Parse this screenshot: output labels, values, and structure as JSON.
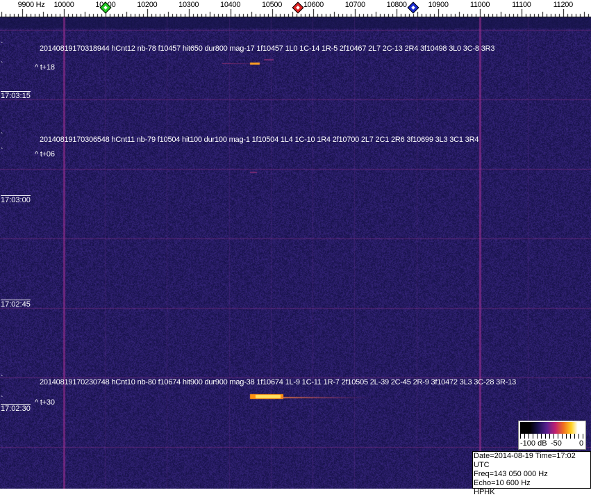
{
  "axis": {
    "unit_label": "9900 Hz",
    "ticks": [
      "10000",
      "10100",
      "10200",
      "10300",
      "10400",
      "10500",
      "10600",
      "10700",
      "10800",
      "10900",
      "11000",
      "11100",
      "11200"
    ],
    "markers": [
      {
        "name": "green-marker",
        "freq": 10100,
        "color": "#22cc22"
      },
      {
        "name": "red-marker",
        "freq": 10562,
        "color": "#dd2222"
      },
      {
        "name": "blue-marker",
        "freq": 10840,
        "color": "#1a2ad0"
      }
    ]
  },
  "colors": {
    "background": "#1c1a60",
    "line": "#8a2a8a",
    "signal": "#ffb020"
  },
  "detections": [
    {
      "info": "20140819170318944 hCnt12 nb-78 f10457 hit650 dur800 mag-17 1f10457 1L0 1C-14 1R-5 2f10467 2L7 2C-13 2R4 3f10498 3L0 3C-8 3R3",
      "offset": "^ t+18"
    },
    {
      "info": "20140819170306548 hCnt11 nb-79 f10504 hit100 dur100 mag-1 1f10504 1L4 1C-10 1R4 2f10700 2L7 2C1 2R6 3f10699 3L3 3C1 3R4",
      "offset": "^ t+06"
    },
    {
      "info": "20140819170230748 hCnt10 nb-80 f10674 hit900 dur900 mag-38 1f10674 1L-9 1C-11 1R-7 2f10505 2L-39 2C-45 2R-9 3f10472 3L3 3C-28 3R-13",
      "offset": "^ t+30"
    }
  ],
  "times": [
    "17:03:15",
    "17:03:00",
    "17:02:45",
    "17:02:30"
  ],
  "colorbar": {
    "labels": [
      "-100 dB",
      "-50",
      "0"
    ]
  },
  "info": {
    "date_line": "Date=2014-08-19 Time=17:02 UTC",
    "freq_line": "Freq=143 050 000 Hz",
    "echo_line": "Echo=10 600 Hz",
    "station": "HPHK"
  }
}
